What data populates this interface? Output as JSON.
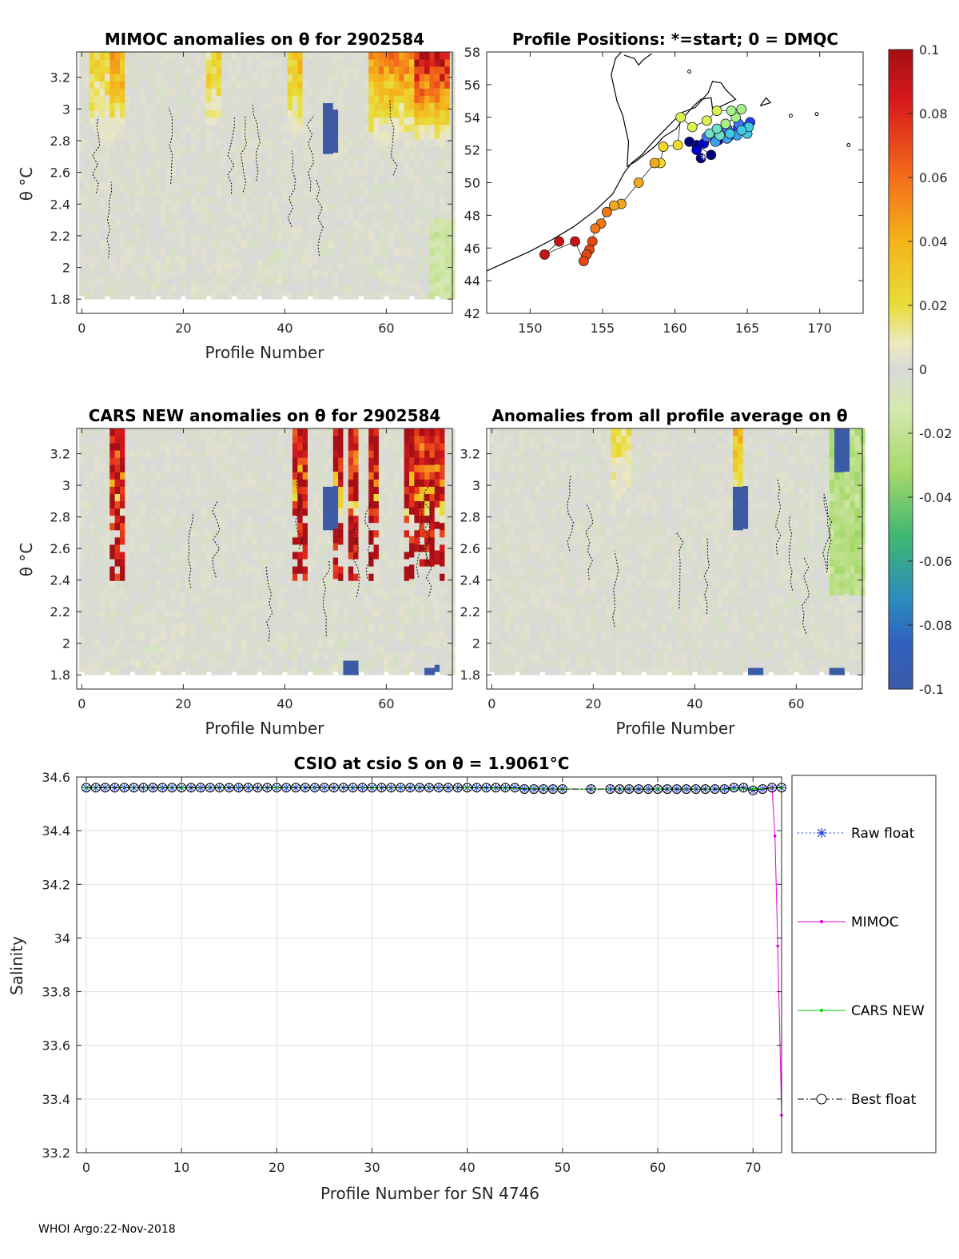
{
  "colors": {
    "anomaly_neutral": "#d9d9d9",
    "positive": "#e8c21e",
    "negative": "#3c5ba5",
    "raw": "#1f3fd6",
    "mimoc": "#e000e0",
    "cars": "#00d000",
    "best": "#000000"
  },
  "chart_data": [
    {
      "id": "mimoc",
      "type": "heatmap",
      "title": "MIMOC anomalies on θ  for 2902584",
      "xlabel": "Profile Number",
      "ylabel": "θ °C",
      "xlim": [
        -1,
        73
      ],
      "ylim": [
        1.71,
        3.36
      ],
      "xticks": [
        0,
        20,
        40,
        60
      ],
      "yticks": [
        1.8,
        2,
        2.2,
        2.4,
        2.6,
        2.8,
        3,
        3.2
      ],
      "warm_bands": [
        {
          "x": [
            2,
            6
          ],
          "level": 0.03
        },
        {
          "x": [
            6,
            9
          ],
          "level": 0.05
        },
        {
          "x": [
            25,
            28
          ],
          "level": 0.03
        },
        {
          "x": [
            41,
            44
          ],
          "level": 0.04
        },
        {
          "x": [
            57,
            66
          ],
          "level": 0.06
        },
        {
          "x": [
            66,
            73
          ],
          "level": 0.1
        }
      ],
      "cold_spots": [
        {
          "x": 49,
          "y": [
            2.72,
            3.02
          ]
        }
      ],
      "cbar": {
        "range": [
          -0.1,
          0.1
        ],
        "ticks": [
          0.1,
          0.08,
          0.06,
          0.04,
          0.02,
          0,
          -0.02,
          -0.04,
          -0.06,
          -0.08,
          -0.1
        ],
        "tick_labels": [
          "0.1",
          "0.08",
          "0.06",
          "0.04",
          "0.02",
          "0",
          "-0.02",
          "-0.04",
          "-0.06",
          "-0.08",
          "-0.1"
        ]
      }
    },
    {
      "id": "positions",
      "type": "scatter",
      "title": "Profile Positions: *=start; 0 = DMQC",
      "xlim": [
        147,
        173
      ],
      "ylim": [
        42,
        58
      ],
      "xticks": [
        150,
        155,
        160,
        165,
        170
      ],
      "yticks": [
        42,
        44,
        46,
        48,
        50,
        52,
        54,
        56,
        58
      ],
      "points": [
        [
          161.8,
          51.5
        ],
        [
          162.5,
          51.7
        ],
        [
          161.5,
          52.3
        ],
        [
          161.0,
          52.5
        ],
        [
          161.5,
          52.0
        ],
        [
          162.0,
          52.4
        ],
        [
          163.0,
          52.6
        ],
        [
          163.7,
          52.8
        ],
        [
          164.3,
          53.2
        ],
        [
          164.9,
          53.4
        ],
        [
          165.2,
          53.7
        ],
        [
          164.4,
          53.6
        ],
        [
          163.6,
          53.3
        ],
        [
          162.8,
          53.0
        ],
        [
          162.2,
          52.8
        ],
        [
          162.8,
          52.5
        ],
        [
          163.6,
          52.7
        ],
        [
          164.3,
          52.9
        ],
        [
          165.0,
          53.0
        ],
        [
          165.1,
          53.4
        ],
        [
          164.6,
          53.2
        ],
        [
          163.8,
          53.0
        ],
        [
          163.1,
          52.9
        ],
        [
          162.4,
          53.0
        ],
        [
          162.9,
          53.3
        ],
        [
          163.5,
          53.6
        ],
        [
          164.2,
          54.0
        ],
        [
          164.6,
          54.5
        ],
        [
          163.9,
          54.4
        ],
        [
          162.9,
          54.4
        ],
        [
          162.2,
          53.8
        ],
        [
          161.2,
          53.4
        ],
        [
          160.4,
          54.0
        ],
        [
          160.2,
          52.3
        ],
        [
          159.2,
          52.2
        ],
        [
          159.0,
          51.2
        ],
        [
          158.6,
          51.2
        ],
        [
          157.5,
          50.0
        ],
        [
          156.3,
          48.7
        ],
        [
          155.8,
          48.6
        ],
        [
          155.3,
          48.2
        ],
        [
          154.9,
          47.5
        ],
        [
          154.5,
          47.2
        ],
        [
          154.3,
          46.4
        ],
        [
          154.1,
          45.9
        ],
        [
          153.9,
          45.6
        ],
        [
          153.7,
          45.2
        ],
        [
          153.1,
          46.4
        ],
        [
          151.0,
          45.6
        ],
        [
          152.0,
          46.4
        ]
      ],
      "start_point": [
        162.0,
        51.5
      ]
    },
    {
      "id": "cars",
      "type": "heatmap",
      "title": "CARS NEW anomalies on θ for 2902584",
      "xlabel": "Profile Number",
      "ylabel": "θ °C",
      "xlim": [
        -1,
        73
      ],
      "ylim": [
        1.71,
        3.36
      ],
      "xticks": [
        0,
        20,
        40,
        60
      ],
      "yticks": [
        1.8,
        2,
        2.2,
        2.4,
        2.6,
        2.8,
        3,
        3.2
      ],
      "warm_bands": [
        {
          "x": [
            6,
            9
          ],
          "level": 0.1
        },
        {
          "x": [
            42,
            45
          ],
          "level": 0.1
        },
        {
          "x": [
            50,
            52
          ],
          "level": 0.1
        },
        {
          "x": [
            53,
            55
          ],
          "level": 0.1
        },
        {
          "x": [
            57,
            59
          ],
          "level": 0.1
        },
        {
          "x": [
            64,
            68
          ],
          "level": 0.1
        },
        {
          "x": [
            68,
            72
          ],
          "level": 0.1
        }
      ],
      "cold_spots": [
        {
          "x": 49,
          "y": [
            2.72,
            3.0
          ]
        },
        {
          "x": 53,
          "y": [
            1.8,
            1.88
          ]
        },
        {
          "x": 69,
          "y": [
            1.8,
            1.86
          ]
        }
      ]
    },
    {
      "id": "avg",
      "type": "heatmap",
      "title": "Anomalies from all profile average on θ",
      "xlabel": "Profile Number",
      "ylabel": "",
      "xlim": [
        -1,
        73
      ],
      "ylim": [
        1.71,
        3.36
      ],
      "xticks": [
        0,
        20,
        40,
        60
      ],
      "yticks": [
        1.8,
        2,
        2.2,
        2.4,
        2.6,
        2.8,
        3,
        3.2
      ],
      "warm_bands": [
        {
          "x": [
            24,
            28
          ],
          "level": 0.02
        },
        {
          "x": [
            48,
            50
          ],
          "level": 0.04
        }
      ],
      "cold_spots": [
        {
          "x": 49,
          "y": [
            2.72,
            3.0
          ]
        },
        {
          "x": 52,
          "y": [
            1.75,
            1.86
          ]
        },
        {
          "x": 68,
          "y": [
            1.75,
            1.85
          ]
        },
        {
          "x": 69,
          "y": [
            3.1,
            3.36
          ]
        }
      ]
    },
    {
      "id": "salinity",
      "type": "line",
      "title": "CSIO at csio S on θ = 1.9061°C",
      "xlabel": "Profile Number for SN 4746",
      "ylabel": "Salinity",
      "xlim": [
        -1,
        73
      ],
      "ylim": [
        33.2,
        34.6
      ],
      "xticks": [
        0,
        10,
        20,
        30,
        40,
        50,
        60,
        70
      ],
      "yticks": [
        33.2,
        33.4,
        33.6,
        33.8,
        34,
        34.2,
        34.4,
        34.6
      ],
      "legend_position": "right",
      "series": [
        {
          "name": "Raw float",
          "style": "dotted-star",
          "x": [
            0,
            1,
            2,
            3,
            4,
            5,
            6,
            7,
            8,
            9,
            10,
            11,
            12,
            13,
            14,
            15,
            16,
            17,
            18,
            19,
            20,
            21,
            22,
            23,
            24,
            25,
            26,
            27,
            28,
            29,
            30,
            31,
            32,
            33,
            34,
            35,
            36,
            37,
            38,
            39,
            40,
            41,
            42,
            43,
            44,
            45,
            46,
            47,
            48,
            49,
            50,
            53,
            55,
            56,
            57,
            58,
            59,
            60,
            61,
            62,
            63,
            64,
            65,
            66,
            67,
            68,
            69,
            70,
            71,
            72,
            73
          ],
          "y": [
            34.56,
            34.56,
            34.56,
            34.56,
            34.56,
            34.56,
            34.56,
            34.56,
            34.56,
            34.56,
            34.56,
            34.56,
            34.56,
            34.56,
            34.56,
            34.56,
            34.56,
            34.56,
            34.56,
            34.56,
            34.56,
            34.56,
            34.56,
            34.56,
            34.56,
            34.56,
            34.56,
            34.56,
            34.56,
            34.56,
            34.56,
            34.56,
            34.56,
            34.56,
            34.56,
            34.56,
            34.56,
            34.56,
            34.56,
            34.56,
            34.56,
            34.56,
            34.56,
            34.56,
            34.56,
            34.56,
            34.555,
            34.555,
            34.555,
            34.555,
            34.555,
            34.555,
            34.555,
            34.555,
            34.555,
            34.555,
            34.555,
            34.555,
            34.555,
            34.555,
            34.555,
            34.555,
            34.555,
            34.555,
            34.555,
            34.56,
            34.56,
            34.55,
            34.555,
            34.56,
            34.56
          ]
        },
        {
          "name": "MIMOC",
          "style": "solid-dot",
          "x": [
            72,
            72.3,
            72.6,
            73
          ],
          "y": [
            34.56,
            34.38,
            33.97,
            33.34
          ]
        },
        {
          "name": "CARS NEW",
          "style": "solid-dot",
          "x": [
            0,
            10,
            20,
            30,
            40,
            50,
            60,
            70,
            73
          ],
          "y": [
            34.56,
            34.56,
            34.56,
            34.56,
            34.56,
            34.555,
            34.555,
            34.555,
            34.56
          ]
        },
        {
          "name": "Best float",
          "style": "dashdot-circle",
          "x": [
            0,
            1,
            2,
            3,
            4,
            5,
            6,
            7,
            8,
            9,
            10,
            11,
            12,
            13,
            14,
            15,
            16,
            17,
            18,
            19,
            20,
            21,
            22,
            23,
            24,
            25,
            26,
            27,
            28,
            29,
            30,
            31,
            32,
            33,
            34,
            35,
            36,
            37,
            38,
            39,
            40,
            41,
            42,
            43,
            44,
            45,
            46,
            47,
            48,
            49,
            50,
            53,
            55,
            56,
            57,
            58,
            59,
            60,
            61,
            62,
            63,
            64,
            65,
            66,
            67,
            68,
            69,
            70,
            71,
            72,
            73
          ],
          "y": [
            34.56,
            34.56,
            34.56,
            34.56,
            34.56,
            34.56,
            34.56,
            34.56,
            34.56,
            34.56,
            34.56,
            34.56,
            34.56,
            34.56,
            34.56,
            34.56,
            34.56,
            34.56,
            34.56,
            34.56,
            34.56,
            34.56,
            34.56,
            34.56,
            34.56,
            34.56,
            34.56,
            34.56,
            34.56,
            34.56,
            34.56,
            34.56,
            34.56,
            34.56,
            34.56,
            34.56,
            34.56,
            34.56,
            34.56,
            34.56,
            34.56,
            34.56,
            34.56,
            34.56,
            34.56,
            34.56,
            34.555,
            34.555,
            34.555,
            34.555,
            34.555,
            34.555,
            34.555,
            34.555,
            34.555,
            34.555,
            34.555,
            34.555,
            34.555,
            34.555,
            34.555,
            34.555,
            34.555,
            34.555,
            34.555,
            34.56,
            34.56,
            34.55,
            34.555,
            34.56,
            34.56
          ]
        }
      ]
    }
  ],
  "footer": {
    "text": "WHOI Argo:22-Nov-2018"
  }
}
